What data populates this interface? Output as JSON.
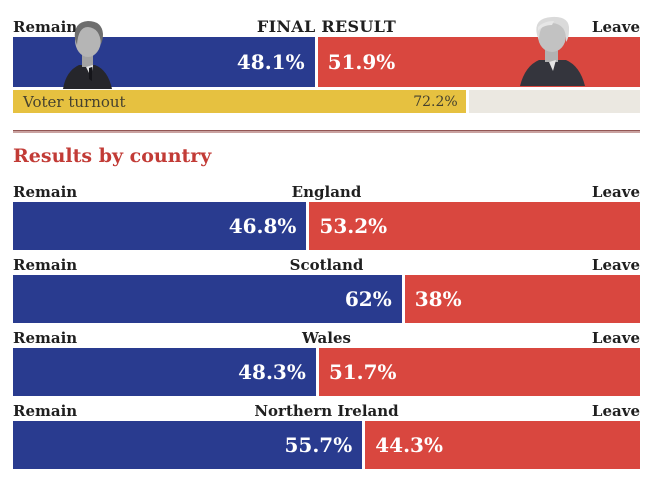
{
  "chart_data": {
    "type": "bar",
    "title": "FINAL RESULT",
    "legend_left": "Remain",
    "legend_right": "Leave",
    "legend_position": "top",
    "xlim": [
      0,
      100
    ],
    "grid": false,
    "final_result": {
      "remain_pct": 48.1,
      "leave_pct": 51.9,
      "remain_label": "48.1%",
      "leave_label": "51.9%"
    },
    "turnout": {
      "label": "Voter turnout",
      "value_pct": 72.2,
      "value_label": "72.2%"
    },
    "section_title": "Results by country",
    "countries": [
      {
        "name": "England",
        "remain_pct": 46.8,
        "leave_pct": 53.2,
        "remain_label": "46.8%",
        "leave_label": "53.2%"
      },
      {
        "name": "Scotland",
        "remain_pct": 62,
        "leave_pct": 38,
        "remain_label": "62%",
        "leave_label": "38%"
      },
      {
        "name": "Wales",
        "remain_pct": 48.3,
        "leave_pct": 51.7,
        "remain_label": "48.3%",
        "leave_label": "51.7%"
      },
      {
        "name": "Northern Ireland",
        "remain_pct": 55.7,
        "leave_pct": 44.3,
        "remain_label": "55.7%",
        "leave_label": "44.3%"
      }
    ],
    "photos": {
      "left": "David Cameron",
      "right": "Boris Johnson"
    },
    "colors": {
      "remain_blue": "#293b8f",
      "leave_red": "#d9473f",
      "turnout_yellow": "#e6c140",
      "turnout_rest_gray": "#ebe8e1",
      "heading_red": "#c23b36",
      "divider_maroon": "#935654",
      "label_black": "#1f1f1f"
    }
  }
}
